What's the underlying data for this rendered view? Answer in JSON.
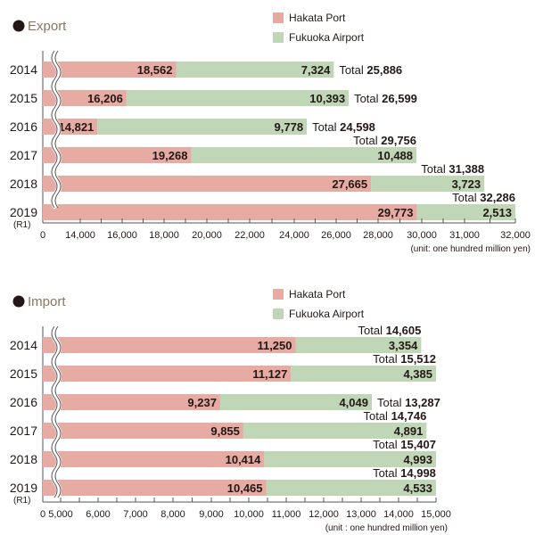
{
  "colors": {
    "hakata": "#e6aba3",
    "fukuoka": "#bfd6b7",
    "title": "#8a7560",
    "text": "#231815",
    "axis": "#555555"
  },
  "chart_data": [
    {
      "type": "bar",
      "stacked": true,
      "orientation": "horizontal",
      "title": "Export",
      "categories": [
        "2014",
        "2015",
        "2016",
        "2017",
        "2018",
        "2019"
      ],
      "category_sublabels": [
        "",
        "",
        "",
        "",
        "",
        "(R1)"
      ],
      "series": [
        {
          "name": "Hakata Port",
          "values": [
            18562,
            16206,
            14821,
            19268,
            27665,
            29773
          ]
        },
        {
          "name": "Fukuoka Airport",
          "values": [
            7324,
            10393,
            9778,
            10488,
            3723,
            2513
          ]
        }
      ],
      "totals": [
        25886,
        26599,
        24598,
        29756,
        31388,
        32286
      ],
      "total_label": "Total",
      "total_position": [
        "right",
        "right",
        "right",
        "above",
        "above",
        "above"
      ],
      "xticks": [
        0,
        14000,
        16000,
        18000,
        20000,
        22000,
        24000,
        26000,
        28000,
        30000,
        31000,
        32000
      ],
      "xtick_labels": [
        "0",
        "14,000",
        "16,000",
        "18,000",
        "20,000",
        "22,000",
        "24,000",
        "26,000",
        "28,000",
        "30,000",
        "31,000",
        "32,000"
      ],
      "axis_break": true,
      "xlabel": "(unit: one hundred million yen)",
      "xlim": [
        0,
        32000
      ],
      "legend": "top-right"
    },
    {
      "type": "bar",
      "stacked": true,
      "orientation": "horizontal",
      "title": "Import",
      "categories": [
        "2014",
        "2015",
        "2016",
        "2017",
        "2018",
        "2019"
      ],
      "category_sublabels": [
        "",
        "",
        "",
        "",
        "",
        "(R1)"
      ],
      "series": [
        {
          "name": "Hakata Port",
          "values": [
            11250,
            11127,
            9237,
            9855,
            10414,
            10465
          ]
        },
        {
          "name": "Fukuoka Airport",
          "values": [
            3354,
            4385,
            4049,
            4891,
            4993,
            4533
          ]
        }
      ],
      "totals": [
        14605,
        15512,
        13287,
        14746,
        15407,
        14998
      ],
      "total_label": "Total",
      "total_position": [
        "above",
        "above",
        "right",
        "above",
        "above",
        "above"
      ],
      "xticks": [
        0,
        5000,
        6000,
        7000,
        8000,
        9000,
        10000,
        11000,
        12000,
        13000,
        14000,
        15000
      ],
      "xtick_labels": [
        "0",
        "5,000",
        "6,000",
        "7,000",
        "8,000",
        "9,000",
        "10,000",
        "11,000",
        "12,000",
        "13,000",
        "14,000",
        "15,000"
      ],
      "axis_break": true,
      "xlabel": "(unit : one hundred million yen)",
      "xlim": [
        0,
        15000
      ],
      "legend": "top-right"
    }
  ]
}
